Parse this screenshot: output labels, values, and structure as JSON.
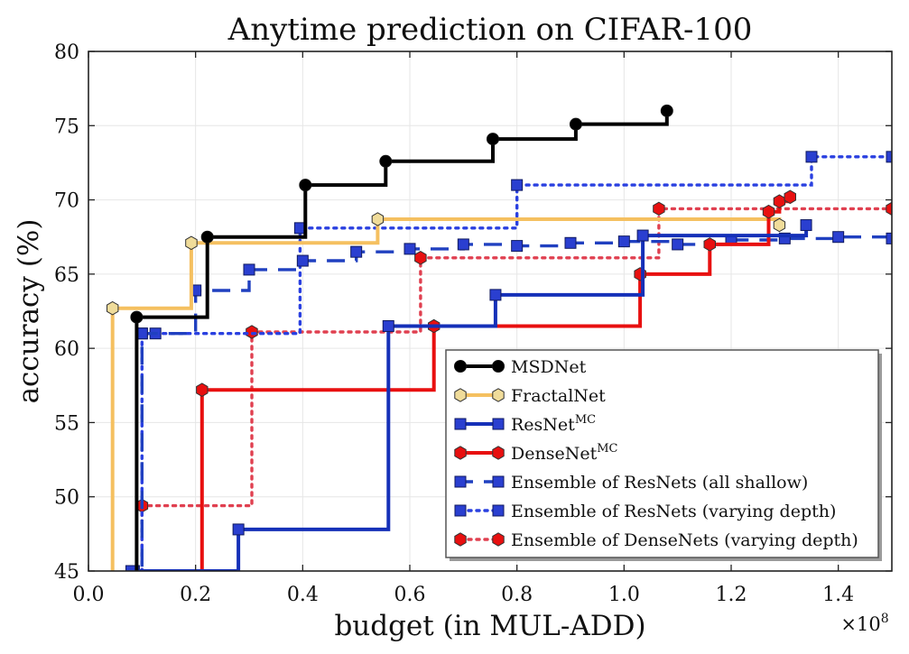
{
  "chart_data": {
    "type": "line",
    "title": "Anytime prediction on CIFAR-100",
    "xlabel": "budget (in MUL-ADD)",
    "ylabel": "accuracy (%)",
    "x_multiplier_label": "×10",
    "x_multiplier_exponent": "8",
    "xlim": [
      0.0,
      1.5
    ],
    "ylim": [
      45,
      80
    ],
    "xticks": [
      0.0,
      0.2,
      0.4,
      0.6,
      0.8,
      1.0,
      1.2,
      1.4
    ],
    "xtick_labels": [
      "0.0",
      "0.2",
      "0.4",
      "0.6",
      "0.8",
      "1.0",
      "1.2",
      "1.4"
    ],
    "yticks": [
      45,
      50,
      55,
      60,
      65,
      70,
      75,
      80
    ],
    "ytick_labels": [
      "45",
      "50",
      "55",
      "60",
      "65",
      "70",
      "75",
      "80"
    ],
    "grid": true,
    "legend_position": "lower-right",
    "series": [
      {
        "name": "MSDNet",
        "label_main": "MSDNet",
        "label_sup": "",
        "color": "#000000",
        "marker": "circle",
        "marker_fill": "#000000",
        "line": "solid",
        "step": true,
        "points": [
          [
            0.09,
            62.1
          ],
          [
            0.222,
            67.5
          ],
          [
            0.405,
            71.0
          ],
          [
            0.555,
            72.6
          ],
          [
            0.755,
            74.1
          ],
          [
            0.91,
            75.1
          ],
          [
            1.08,
            76.0
          ]
        ]
      },
      {
        "name": "FractalNet",
        "label_main": "FractalNet",
        "label_sup": "",
        "color": "#f5c060",
        "marker": "hexagon",
        "marker_fill": "#f0dc9a",
        "line": "solid",
        "step": true,
        "points": [
          [
            0.045,
            62.7
          ],
          [
            0.192,
            67.1
          ],
          [
            0.54,
            68.7
          ],
          [
            1.29,
            68.3
          ]
        ]
      },
      {
        "name": "ResNet MC",
        "label_main": "ResNet",
        "label_sup": "MC",
        "color": "#1530b8",
        "marker": "square",
        "marker_fill": "#2a3fd0",
        "line": "solid",
        "step": true,
        "points": [
          [
            0.08,
            45.0
          ],
          [
            0.28,
            47.8
          ],
          [
            0.56,
            61.5
          ],
          [
            0.76,
            63.6
          ],
          [
            1.035,
            67.6
          ],
          [
            1.34,
            68.3
          ]
        ]
      },
      {
        "name": "DenseNet MC",
        "label_main": "DenseNet",
        "label_sup": "MC",
        "color": "#e81010",
        "marker": "hexagon",
        "marker_fill": "#e81010",
        "line": "solid",
        "step": true,
        "points": [
          [
            0.212,
            57.2
          ],
          [
            0.645,
            61.5
          ],
          [
            1.03,
            65.0
          ],
          [
            1.16,
            67.0
          ],
          [
            1.27,
            69.2
          ],
          [
            1.29,
            69.9
          ],
          [
            1.31,
            70.2
          ]
        ]
      },
      {
        "name": "Ensemble of ResNets (all shallow)",
        "label_main": "Ensemble of ResNets (all shallow)",
        "label_sup": "",
        "color": "#2040c0",
        "marker": "square",
        "marker_fill": "#2a3fd0",
        "line": "dashed",
        "step": true,
        "points": [
          [
            0.085,
            45.0
          ],
          [
            0.1,
            61.0
          ],
          [
            0.2,
            63.9
          ],
          [
            0.3,
            65.3
          ],
          [
            0.4,
            65.9
          ],
          [
            0.5,
            66.5
          ],
          [
            0.6,
            66.7
          ],
          [
            0.7,
            67.0
          ],
          [
            0.8,
            66.9
          ],
          [
            0.9,
            67.1
          ],
          [
            1.0,
            67.2
          ],
          [
            1.1,
            67.0
          ],
          [
            1.2,
            67.3
          ],
          [
            1.3,
            67.4
          ],
          [
            1.4,
            67.5
          ],
          [
            1.5,
            67.4
          ]
        ]
      },
      {
        "name": "Ensemble of ResNets (varying depth)",
        "label_main": "Ensemble of ResNets (varying depth)",
        "label_sup": "",
        "color": "#2a40e0",
        "marker": "square",
        "marker_fill": "#2a3fd0",
        "line": "dotted",
        "step": true,
        "points": [
          [
            0.1,
            61.0
          ],
          [
            0.125,
            61.0
          ],
          [
            0.395,
            68.1
          ],
          [
            0.8,
            71.0
          ],
          [
            1.35,
            72.9
          ],
          [
            1.5,
            72.9
          ]
        ]
      },
      {
        "name": "Ensemble of DenseNets (varying depth)",
        "label_main": "Ensemble of DenseNets (varying depth)",
        "label_sup": "",
        "color": "#e04050",
        "marker": "hexagon",
        "marker_fill": "#e81010",
        "line": "dotted",
        "step": true,
        "points": [
          [
            0.1,
            49.4
          ],
          [
            0.305,
            61.1
          ],
          [
            0.62,
            66.1
          ],
          [
            1.065,
            69.4
          ],
          [
            1.5,
            69.4
          ]
        ]
      }
    ]
  }
}
